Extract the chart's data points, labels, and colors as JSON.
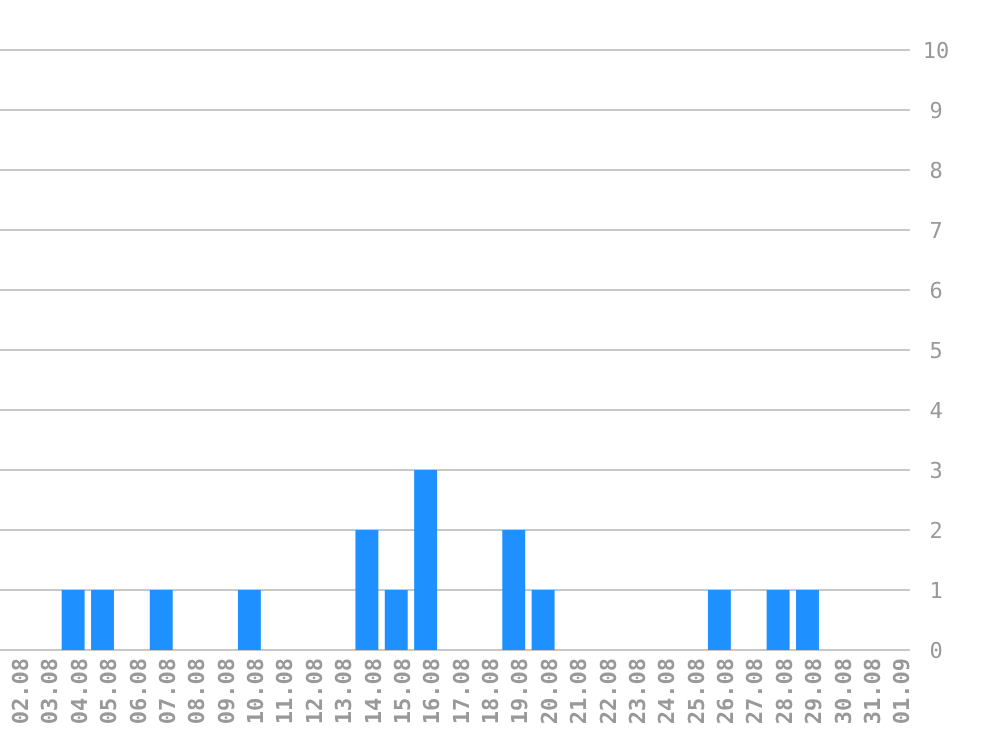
{
  "chart_data": {
    "type": "bar",
    "categories": [
      "02.08",
      "03.08",
      "04.08",
      "05.08",
      "06.08",
      "07.08",
      "08.08",
      "09.08",
      "10.08",
      "11.08",
      "12.08",
      "13.08",
      "14.08",
      "15.08",
      "16.08",
      "17.08",
      "18.08",
      "19.08",
      "20.08",
      "21.08",
      "22.08",
      "23.08",
      "24.08",
      "25.08",
      "26.08",
      "27.08",
      "28.08",
      "29.08",
      "30.08",
      "31.08",
      "01.09"
    ],
    "values": [
      0,
      0,
      1,
      1,
      0,
      1,
      0,
      0,
      1,
      0,
      0,
      0,
      2,
      1,
      3,
      0,
      0,
      2,
      1,
      0,
      0,
      0,
      0,
      0,
      1,
      0,
      1,
      1,
      0,
      0,
      0
    ],
    "color": "#1e90ff",
    "ylim": [
      0,
      10
    ],
    "yticks": [
      0,
      1,
      2,
      3,
      4,
      5,
      6,
      7,
      8,
      9,
      10
    ],
    "grid": "y"
  }
}
